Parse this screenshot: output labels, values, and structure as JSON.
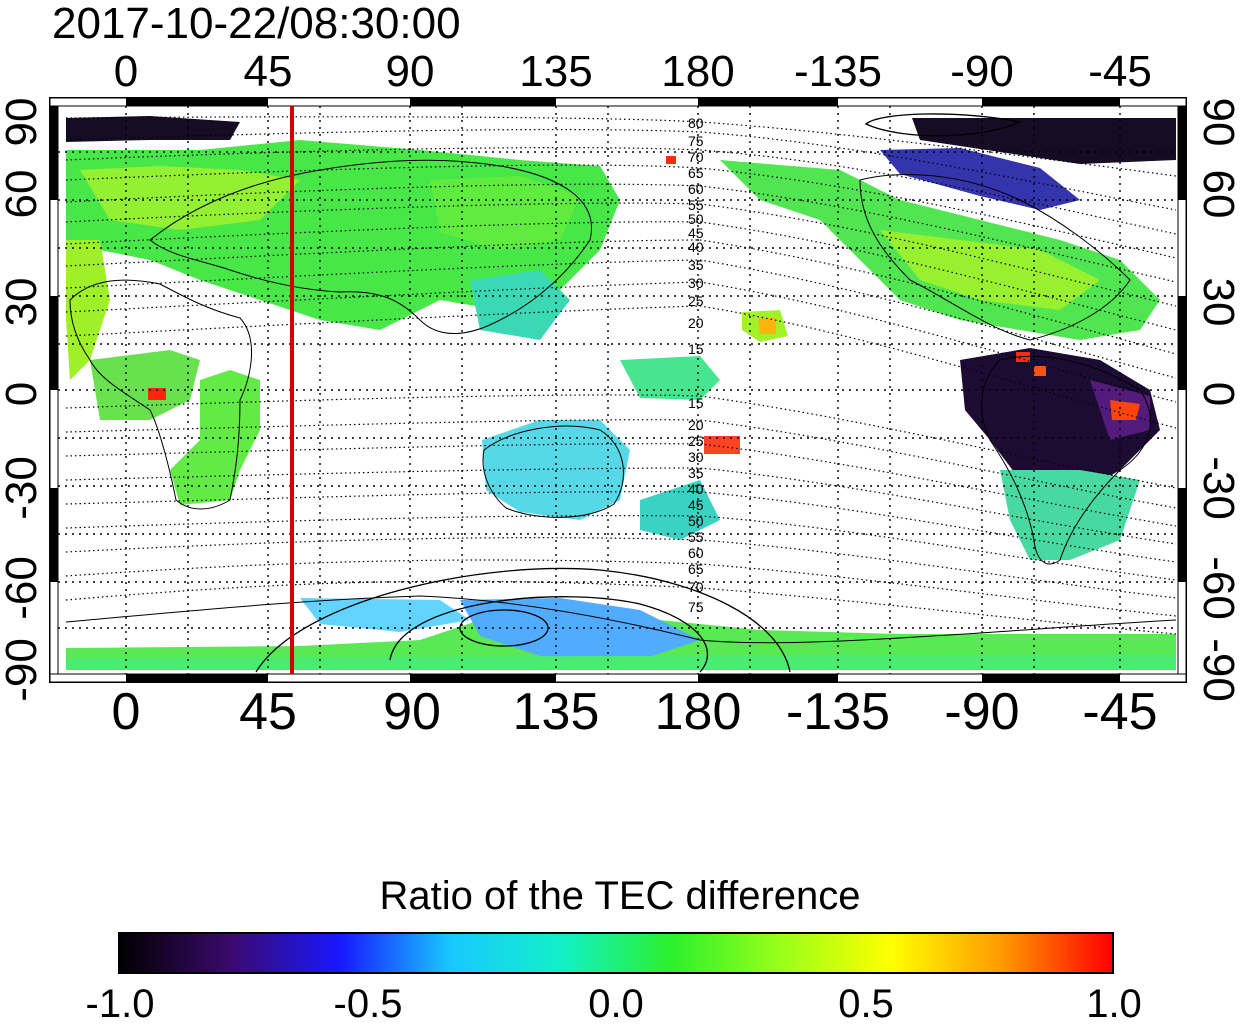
{
  "timestamp": "2017-10-22/08:30:00",
  "map": {
    "top_ticks": [
      "0",
      "45",
      "90",
      "135",
      "180",
      "-135",
      "-90",
      "-45"
    ],
    "bottom_ticks": [
      "0",
      "45",
      "90",
      "135",
      "180",
      "-135",
      "-90",
      "-45"
    ],
    "left_ticks": [
      "90",
      "60",
      "30",
      "0",
      "-30",
      "-60",
      "-90"
    ],
    "right_ticks": [
      "90",
      "60",
      "30",
      "0",
      "-30",
      "-60",
      "-90"
    ],
    "contour_labels_north": [
      "80",
      "75",
      "70",
      "65",
      "60",
      "55",
      "50",
      "45",
      "40",
      "35",
      "30",
      "25",
      "20",
      "15"
    ],
    "contour_labels_south": [
      "15",
      "20",
      "25",
      "30",
      "35",
      "40",
      "45",
      "50",
      "55",
      "60",
      "65",
      "70",
      "75"
    ],
    "marker_longitude": 52,
    "marker_color": "#d40000"
  },
  "colorbar": {
    "title": "Ratio of the TEC difference",
    "ticks": [
      "-1.0",
      "-0.5",
      "0.0",
      "0.5",
      "1.0"
    ],
    "colors": [
      "#000000",
      "#3b0a6e",
      "#1818ff",
      "#19c8ff",
      "#12f0c8",
      "#2cf02c",
      "#9aff1a",
      "#ffff00",
      "#ff9a00",
      "#ff0000"
    ]
  }
}
